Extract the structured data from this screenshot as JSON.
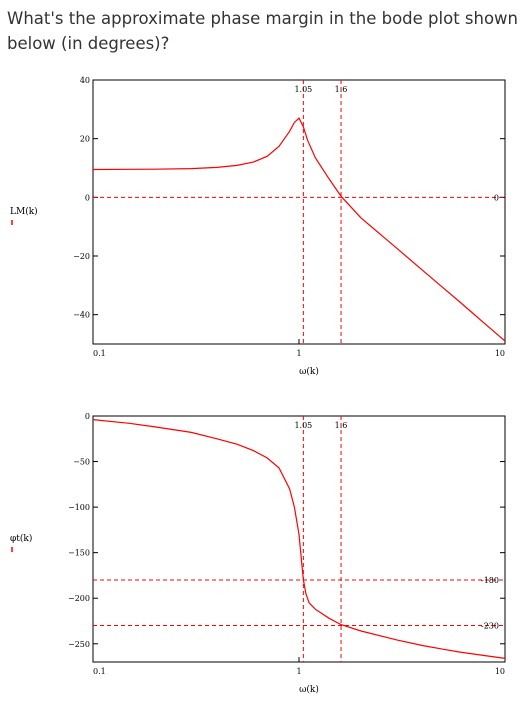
{
  "question": "What's the approximate phase margin in the bode plot shown below (in degrees)?",
  "chart_data": [
    {
      "type": "line",
      "ylabel": "LM(k)",
      "xlabel": "ω(k)",
      "xscale": "log",
      "xlim": [
        0.1,
        10
      ],
      "ylim": [
        -50,
        40
      ],
      "yticks": [
        "40",
        "20",
        "0",
        "−20",
        "−40"
      ],
      "ytick_values": [
        40,
        20,
        0,
        -20,
        -40
      ],
      "xticks": [
        "0.1",
        "1",
        "10"
      ],
      "xtick_values": [
        0.1,
        1,
        10
      ],
      "vlines": [
        {
          "x": 1.05,
          "label": "1.05"
        },
        {
          "x": 1.6,
          "label": "1.6"
        }
      ],
      "hlines": [
        {
          "y": 0,
          "label": "0"
        }
      ],
      "line_color": "#ff0000",
      "guide_color": "#ff0000",
      "series": [
        {
          "x": [
            0.1,
            0.2,
            0.3,
            0.4,
            0.5,
            0.6,
            0.7,
            0.8,
            0.9,
            0.95,
            1.0,
            1.05,
            1.1,
            1.2,
            1.4,
            1.6,
            2,
            3,
            4,
            5,
            6,
            7,
            8,
            10
          ],
          "y": [
            9.5,
            9.6,
            9.8,
            10.2,
            10.9,
            12.0,
            14.0,
            17.4,
            22.5,
            25.5,
            27.0,
            24.0,
            19.5,
            13.5,
            6.3,
            0.4,
            -7.0,
            -17.5,
            -25,
            -30.8,
            -35.5,
            -39.6,
            -43.1,
            -49.0
          ]
        }
      ]
    },
    {
      "type": "line",
      "ylabel": "φt(k)",
      "xlabel": "ω(k)",
      "xscale": "log",
      "xlim": [
        0.1,
        10
      ],
      "ylim": [
        -270,
        0
      ],
      "yticks": [
        "0",
        "−50",
        "−100",
        "−150",
        "−200",
        "−250"
      ],
      "ytick_values": [
        0,
        -50,
        -100,
        -150,
        -200,
        -250
      ],
      "xticks": [
        "0.1",
        "1",
        "10"
      ],
      "xtick_values": [
        0.1,
        1,
        10
      ],
      "vlines": [
        {
          "x": 1.05,
          "label": "1.05"
        },
        {
          "x": 1.6,
          "label": "1.6"
        }
      ],
      "hlines": [
        {
          "y": -180,
          "label": "-180"
        },
        {
          "y": -230,
          "label": "-230"
        }
      ],
      "line_color": "#ff0000",
      "guide_color": "#ff0000",
      "series": [
        {
          "x": [
            0.1,
            0.15,
            0.2,
            0.3,
            0.4,
            0.5,
            0.6,
            0.7,
            0.8,
            0.9,
            0.95,
            1.0,
            1.03,
            1.05,
            1.08,
            1.12,
            1.2,
            1.4,
            1.6,
            2,
            3,
            4,
            5,
            6,
            8,
            10
          ],
          "y": [
            -4,
            -8,
            -12,
            -18,
            -25,
            -31,
            -38,
            -46,
            -57,
            -80,
            -100,
            -130,
            -160,
            -180,
            -195,
            -205,
            -212,
            -222,
            -229,
            -236,
            -246,
            -252,
            -256,
            -259,
            -263,
            -266
          ]
        }
      ]
    }
  ]
}
